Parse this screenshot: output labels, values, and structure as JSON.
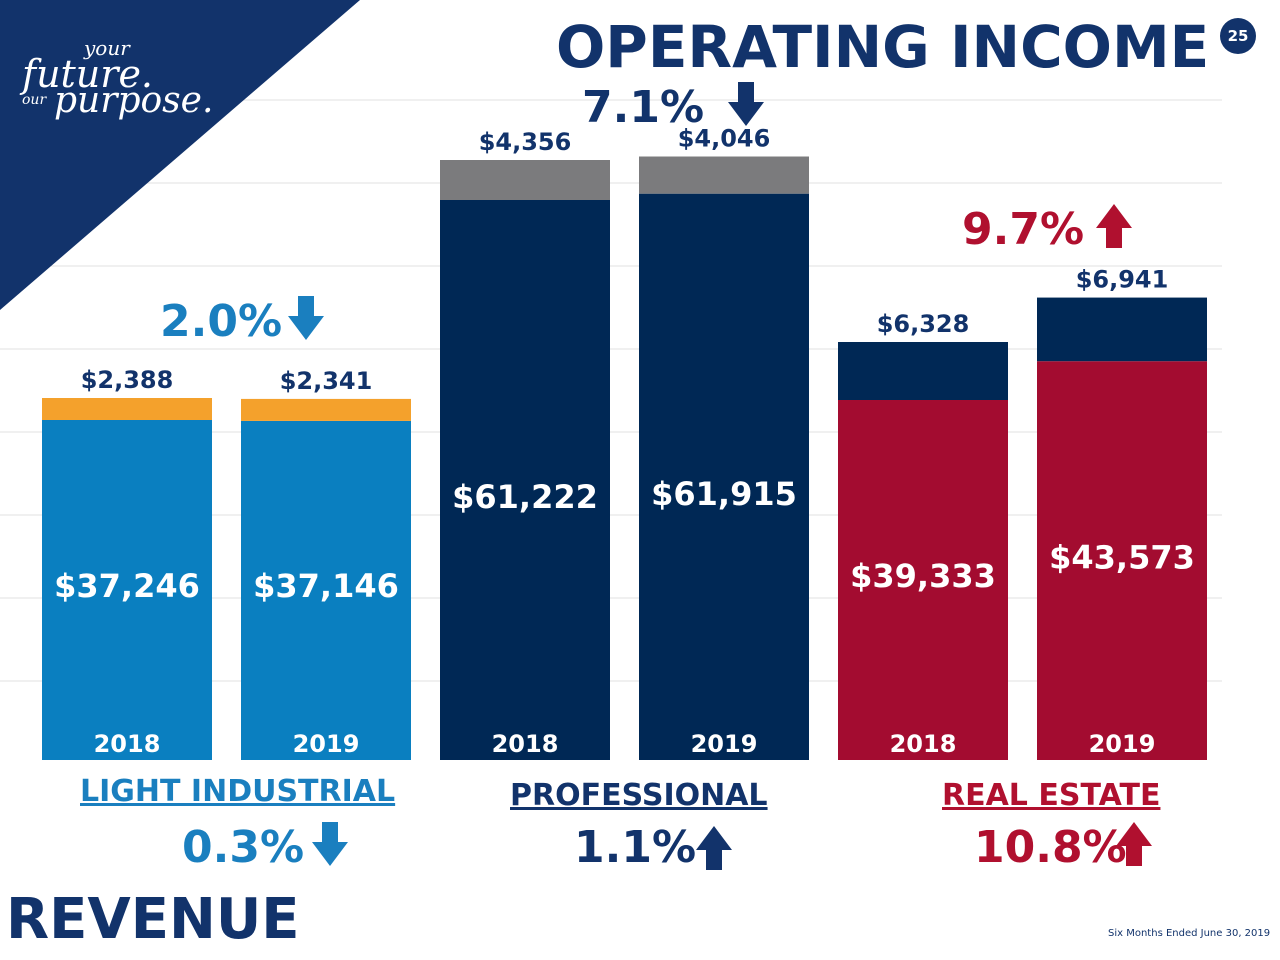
{
  "page": {
    "title": "OPERATING INCOME",
    "bottom_title": "REVENUE",
    "page_number": "25",
    "footnote": "Six Months Ended June 30, 2019",
    "logo": {
      "line1": "your",
      "line2": "future.",
      "line3_small": "our",
      "line3": "purpose."
    }
  },
  "colors": {
    "navy": "#002855",
    "light_industrial": "#0a7fc0",
    "light_industrial_op": "#f4a12c",
    "professional_op": "#7b7b7d",
    "real_estate": "#a30c30",
    "title_blue": "#12336b",
    "up_red": "#b0102f"
  },
  "segments": [
    {
      "name": "LIGHT INDUSTRIAL",
      "revenue_change": "0.3%",
      "revenue_dir": "down",
      "op_change": "2.0%",
      "op_dir": "down",
      "color": "#0a7fc0",
      "op_color": "#f4a12c",
      "text_color": "#1a7fbf"
    },
    {
      "name": "PROFESSIONAL",
      "revenue_change": "1.1%",
      "revenue_dir": "up",
      "op_change": "7.1%",
      "op_dir": "down",
      "color": "#002855",
      "op_color": "#7b7b7d",
      "text_color": "#12336b"
    },
    {
      "name": "REAL ESTATE",
      "revenue_change": "10.8%",
      "revenue_dir": "up",
      "op_change": "9.7%",
      "op_dir": "up",
      "color": "#a30c30",
      "op_color": "#002855",
      "text_color": "#b0102f"
    }
  ],
  "chart_data": {
    "type": "bar",
    "stacked": true,
    "categories": [
      "2018",
      "2019",
      "2018",
      "2019",
      "2018",
      "2019"
    ],
    "groups": [
      "LIGHT INDUSTRIAL",
      "LIGHT INDUSTRIAL",
      "PROFESSIONAL",
      "PROFESSIONAL",
      "REAL ESTATE",
      "REAL ESTATE"
    ],
    "series": [
      {
        "name": "REVENUE",
        "values": [
          37246,
          37146,
          61222,
          61915,
          39333,
          43573
        ],
        "labels": [
          "$37,246",
          "$37,146",
          "$61,222",
          "$61,915",
          "$39,333",
          "$43,573"
        ]
      },
      {
        "name": "OPERATING INCOME",
        "values": [
          2388,
          2341,
          4356,
          4046,
          6328,
          6941
        ],
        "labels": [
          "$2,388",
          "$2,341",
          "$4,356",
          "$4,046",
          "$6,328",
          "$6,941"
        ]
      }
    ],
    "xlabel": "",
    "ylabel": "",
    "grid": true,
    "legend": "none"
  }
}
